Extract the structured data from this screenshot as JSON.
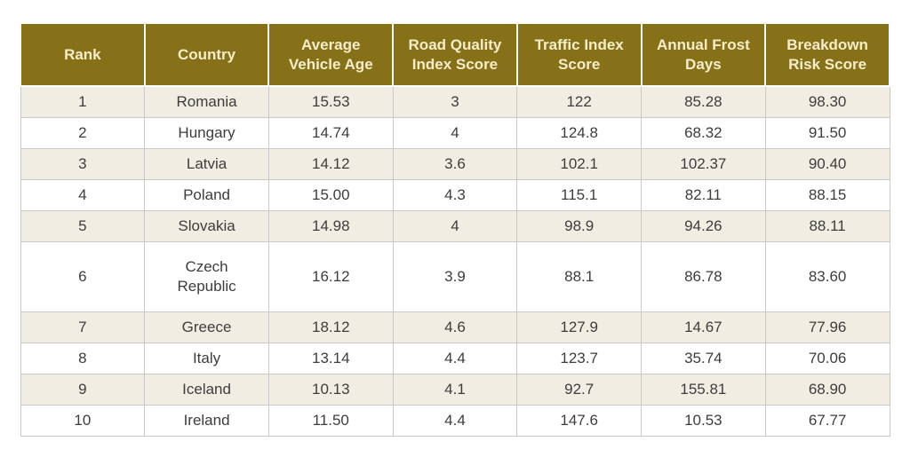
{
  "chart_data": {
    "type": "table",
    "title": "",
    "columns": [
      "Rank",
      "Country",
      "Average\nVehicle Age",
      "Road Quality\nIndex Score",
      "Traffic Index\nScore",
      "Annual Frost\nDays",
      "Breakdown\nRisk Score"
    ],
    "column_keys": [
      "rank",
      "country",
      "average-vehicle-age",
      "road-quality-index-score",
      "traffic-index-score",
      "annual-frost-days",
      "breakdown-risk-score"
    ],
    "rows": [
      [
        "1",
        "Romania",
        "15.53",
        "3",
        "122",
        "85.28",
        "98.30"
      ],
      [
        "2",
        "Hungary",
        "14.74",
        "4",
        "124.8",
        "68.32",
        "91.50"
      ],
      [
        "3",
        "Latvia",
        "14.12",
        "3.6",
        "102.1",
        "102.37",
        "90.40"
      ],
      [
        "4",
        "Poland",
        "15.00",
        "4.3",
        "115.1",
        "82.11",
        "88.15"
      ],
      [
        "5",
        "Slovakia",
        "14.98",
        "4",
        "98.9",
        "94.26",
        "88.11"
      ],
      [
        "6",
        "Czech\nRepublic",
        "16.12",
        "3.9",
        "88.1",
        "86.78",
        "83.60"
      ],
      [
        "7",
        "Greece",
        "18.12",
        "4.6",
        "127.9",
        "14.67",
        "77.96"
      ],
      [
        "8",
        "Italy",
        "13.14",
        "4.4",
        "123.7",
        "35.74",
        "70.06"
      ],
      [
        "9",
        "Iceland",
        "10.13",
        "4.1",
        "92.7",
        "155.81",
        "68.90"
      ],
      [
        "10",
        "Ireland",
        "11.50",
        "4.4",
        "147.6",
        "10.53",
        "67.77"
      ]
    ],
    "layout": {
      "grid": true,
      "alternating_rows": true
    },
    "colors": {
      "header_bg": "#867118",
      "header_text": "#f7edca",
      "row_alt_bg": "#f2ede3",
      "row_bg": "#ffffff",
      "border": "#c9c9c9",
      "text": "#3d3d3d"
    }
  }
}
